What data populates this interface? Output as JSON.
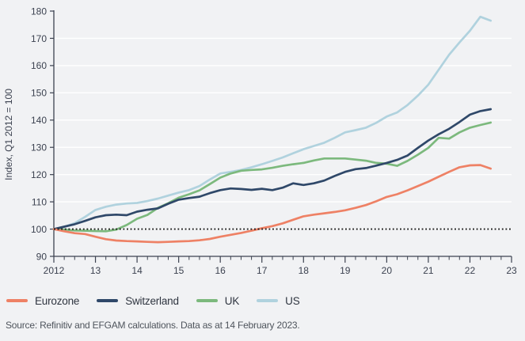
{
  "figure": {
    "background": "#f1f2f4",
    "text_color": "#3c4250",
    "gridline_color": "#ffffff"
  },
  "chart_data": {
    "type": "line",
    "title": "",
    "xlabel": "",
    "ylabel": "Index, Q1 2012 = 100",
    "xlim": [
      2012,
      2023
    ],
    "ylim": [
      90,
      180
    ],
    "y_ticks": [
      90,
      100,
      110,
      120,
      130,
      140,
      150,
      160,
      170,
      180
    ],
    "x_tick_years": [
      2012,
      2013,
      2014,
      2015,
      2016,
      2017,
      2018,
      2019,
      2020,
      2021,
      2022,
      2023
    ],
    "x_tick_labels": [
      "2012",
      "13",
      "14",
      "15",
      "16",
      "17",
      "18",
      "19",
      "20",
      "21",
      "22",
      "23"
    ],
    "minor_x_ticks": "quarterly",
    "grid": "horizontal white gridlines every 10 index points",
    "legend_position": "bottom-left",
    "reference_line": {
      "value": 100,
      "style": "dotted",
      "color": "#1b1b1b"
    },
    "x_start": 2012.0,
    "x_step_years": 0.25,
    "x_end": 2022.5,
    "series": [
      {
        "name": "Eurozone",
        "color": "#ee8165",
        "values": [
          100,
          99.2,
          98.5,
          98.2,
          97.2,
          96.3,
          95.8,
          95.6,
          95.5,
          95.3,
          95.2,
          95.3,
          95.5,
          95.6,
          95.9,
          96.4,
          97.2,
          97.9,
          98.6,
          99.4,
          100.3,
          101.1,
          102.1,
          103.4,
          104.7,
          105.3,
          105.8,
          106.3,
          106.9,
          107.8,
          108.8,
          110.2,
          111.8,
          112.8,
          114.2,
          115.8,
          117.4,
          119.2,
          121.0,
          122.7,
          123.4,
          123.5,
          122.2
        ]
      },
      {
        "name": "Switzerland",
        "color": "#2f4869",
        "values": [
          100,
          100.9,
          101.8,
          103.0,
          104.3,
          105.1,
          105.3,
          105.1,
          106.4,
          107.1,
          107.6,
          109.3,
          110.8,
          111.4,
          111.9,
          113.2,
          114.3,
          114.9,
          114.7,
          114.4,
          114.8,
          114.3,
          115.2,
          116.8,
          116.2,
          116.8,
          117.8,
          119.5,
          121.0,
          122.0,
          122.4,
          123.3,
          124.3,
          125.4,
          127.0,
          129.8,
          132.5,
          134.8,
          136.8,
          139.3,
          142.0,
          143.3,
          144.0
        ]
      },
      {
        "name": "UK",
        "color": "#7cb97d",
        "values": [
          100,
          99.8,
          99.5,
          99.4,
          99.3,
          99.2,
          99.8,
          101.5,
          103.8,
          105.2,
          107.8,
          109.5,
          111.5,
          112.8,
          114.2,
          116.5,
          118.9,
          120.4,
          121.4,
          121.7,
          121.9,
          122.5,
          123.2,
          123.8,
          124.3,
          125.2,
          125.9,
          125.9,
          125.9,
          125.5,
          125.1,
          124.3,
          124.0,
          123.2,
          125.0,
          127.3,
          129.8,
          133.5,
          133.2,
          135.5,
          137.2,
          138.2,
          139.1
        ]
      },
      {
        "name": "US",
        "color": "#b0d2de",
        "values": [
          100,
          100.8,
          102.2,
          104.5,
          107.0,
          108.2,
          109.0,
          109.4,
          109.6,
          110.3,
          111.2,
          112.3,
          113.4,
          114.3,
          115.8,
          118.2,
          120.4,
          121.0,
          121.7,
          122.7,
          123.8,
          125.0,
          126.3,
          127.8,
          129.3,
          130.5,
          131.7,
          133.5,
          135.5,
          136.3,
          137.2,
          139.0,
          141.3,
          142.8,
          145.5,
          149.0,
          153.0,
          158.5,
          164.0,
          168.5,
          172.8,
          177.9,
          176.5
        ]
      }
    ]
  },
  "source": {
    "text": "Source: Refinitiv and EFGAM calculations. Data as at 14 February 2023."
  }
}
